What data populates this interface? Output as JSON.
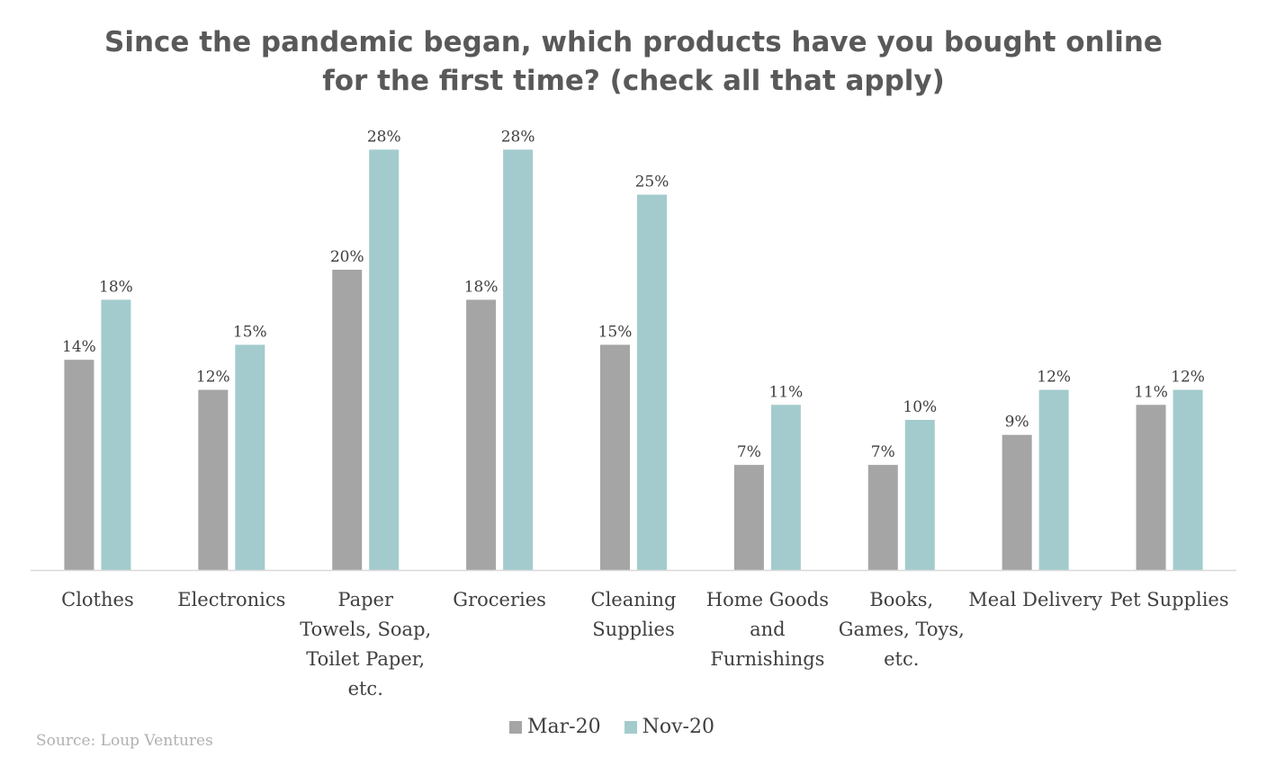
{
  "chart_data": {
    "type": "bar",
    "title": "Since the pandemic began, which products have you bought online for the first time? (check all that apply)",
    "title_lines": [
      "Since the pandemic began, which products have you bought online",
      "for the first time? (check all that apply)"
    ],
    "categories": [
      [
        "Clothes"
      ],
      [
        "Electronics"
      ],
      [
        "Paper",
        "Towels, Soap,",
        "Toilet Paper,",
        "etc."
      ],
      [
        "Groceries"
      ],
      [
        "Cleaning",
        "Supplies"
      ],
      [
        "Home Goods",
        "and",
        "Furnishings"
      ],
      [
        "Books,",
        "Games, Toys,",
        "etc."
      ],
      [
        "Meal Delivery"
      ],
      [
        "Pet Supplies"
      ]
    ],
    "series": [
      {
        "name": "Mar-20",
        "color": "#a5a5a5",
        "values": [
          14,
          12,
          20,
          18,
          15,
          7,
          7,
          9,
          11
        ],
        "labels": [
          "14%",
          "12%",
          "20%",
          "18%",
          "15%",
          "7%",
          "7%",
          "9%",
          "11%"
        ]
      },
      {
        "name": "Nov-20",
        "color": "#a3cbcd",
        "values": [
          18,
          15,
          28,
          28,
          25,
          11,
          10,
          12,
          12
        ],
        "labels": [
          "18%",
          "15%",
          "28%",
          "28%",
          "25%",
          "11%",
          "10%",
          "12%",
          "12%"
        ]
      }
    ],
    "ylim": [
      0,
      30
    ],
    "grid": false,
    "legend_position": "bottom",
    "source": "Source: Loup Ventures"
  }
}
